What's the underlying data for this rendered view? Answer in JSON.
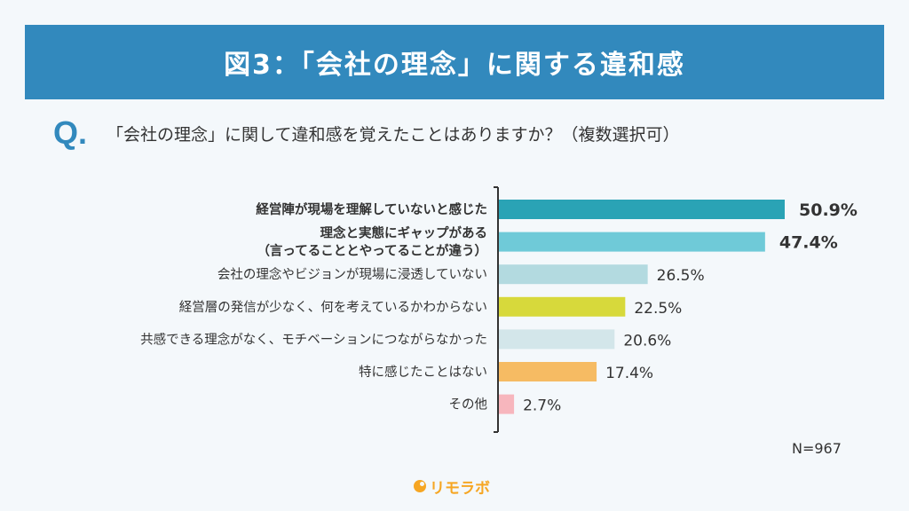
{
  "header": {
    "title": "図3：「会社の理念」に関する違和感"
  },
  "question": {
    "mark": "Q.",
    "text": "「会社の理念」に関して違和感を覚えたことはありますか？（複数選択可）"
  },
  "note": "N=967",
  "logo": {
    "text": "リモラボ"
  },
  "chart_data": {
    "type": "bar",
    "orientation": "horizontal",
    "categories": [
      [
        "経営陣が現場を理解していないと感じた"
      ],
      [
        "理念と実態にギャップがある",
        "（言ってることとやってることが違う）"
      ],
      [
        "会社の理念やビジョンが現場に浸透していない"
      ],
      [
        "経営層の発信が少なく、何を考えているかわからない"
      ],
      [
        "共感できる理念がなく、モチベーションにつながらなかった"
      ],
      [
        "特に感じたことはない"
      ],
      [
        "その他"
      ]
    ],
    "values": [
      50.9,
      47.4,
      26.5,
      22.5,
      20.6,
      17.4,
      2.7
    ],
    "value_labels": [
      "50.9%",
      "47.4%",
      "26.5%",
      "22.5%",
      "20.6%",
      "17.4%",
      "2.7%"
    ],
    "highlight": [
      true,
      true,
      false,
      false,
      false,
      false,
      false
    ],
    "colors": [
      "#2aa3b5",
      "#6fcad8",
      "#b3dae0",
      "#d7d93b",
      "#d3e6ea",
      "#f6bb63",
      "#f7b6bd"
    ],
    "xlim": [
      0,
      55
    ]
  }
}
